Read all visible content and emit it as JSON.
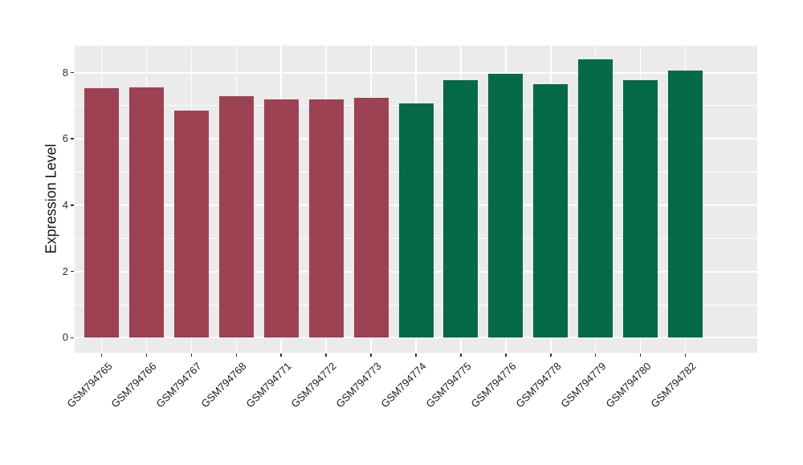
{
  "figure": {
    "background": "#FFFFFF"
  },
  "chart_data": {
    "type": "bar",
    "title": "",
    "xlabel": "",
    "ylabel": "Expression Level",
    "ylim": [
      -0.45,
      8.81
    ],
    "yticks": [
      0,
      2,
      4,
      6,
      8
    ],
    "ytick_labels": [
      "0",
      "2",
      "4",
      "6",
      "8"
    ],
    "yticks_minor": [
      1,
      3,
      5,
      7
    ],
    "grid": true,
    "legend_position": "none",
    "panel_background": "#EBEBEB",
    "grid_color": "#FFFFFF",
    "categories": [
      "GSM794765",
      "GSM794766",
      "GSM794767",
      "GSM794768",
      "GSM794771",
      "GSM794772",
      "GSM794773",
      "GSM794774",
      "GSM794775",
      "GSM794776",
      "GSM794778",
      "GSM794779",
      "GSM794780",
      "GSM794782"
    ],
    "values": [
      7.53,
      7.55,
      6.84,
      7.28,
      7.2,
      7.2,
      7.25,
      7.06,
      7.76,
      7.96,
      7.64,
      8.39,
      7.76,
      8.05
    ],
    "bar_colors": [
      "#9C4253",
      "#9C4253",
      "#9C4253",
      "#9C4253",
      "#9C4253",
      "#9C4253",
      "#9C4253",
      "#046A49",
      "#046A49",
      "#046A49",
      "#046A49",
      "#046A49",
      "#046A49",
      "#046A49"
    ],
    "groups": [
      {
        "name": "group-maroon",
        "color": "#9C4253",
        "samples": [
          "GSM794765",
          "GSM794766",
          "GSM794767",
          "GSM794768",
          "GSM794771",
          "GSM794772",
          "GSM794773"
        ]
      },
      {
        "name": "group-green",
        "color": "#046A49",
        "samples": [
          "GSM794774",
          "GSM794775",
          "GSM794776",
          "GSM794778",
          "GSM794779",
          "GSM794780",
          "GSM794782"
        ]
      }
    ]
  }
}
